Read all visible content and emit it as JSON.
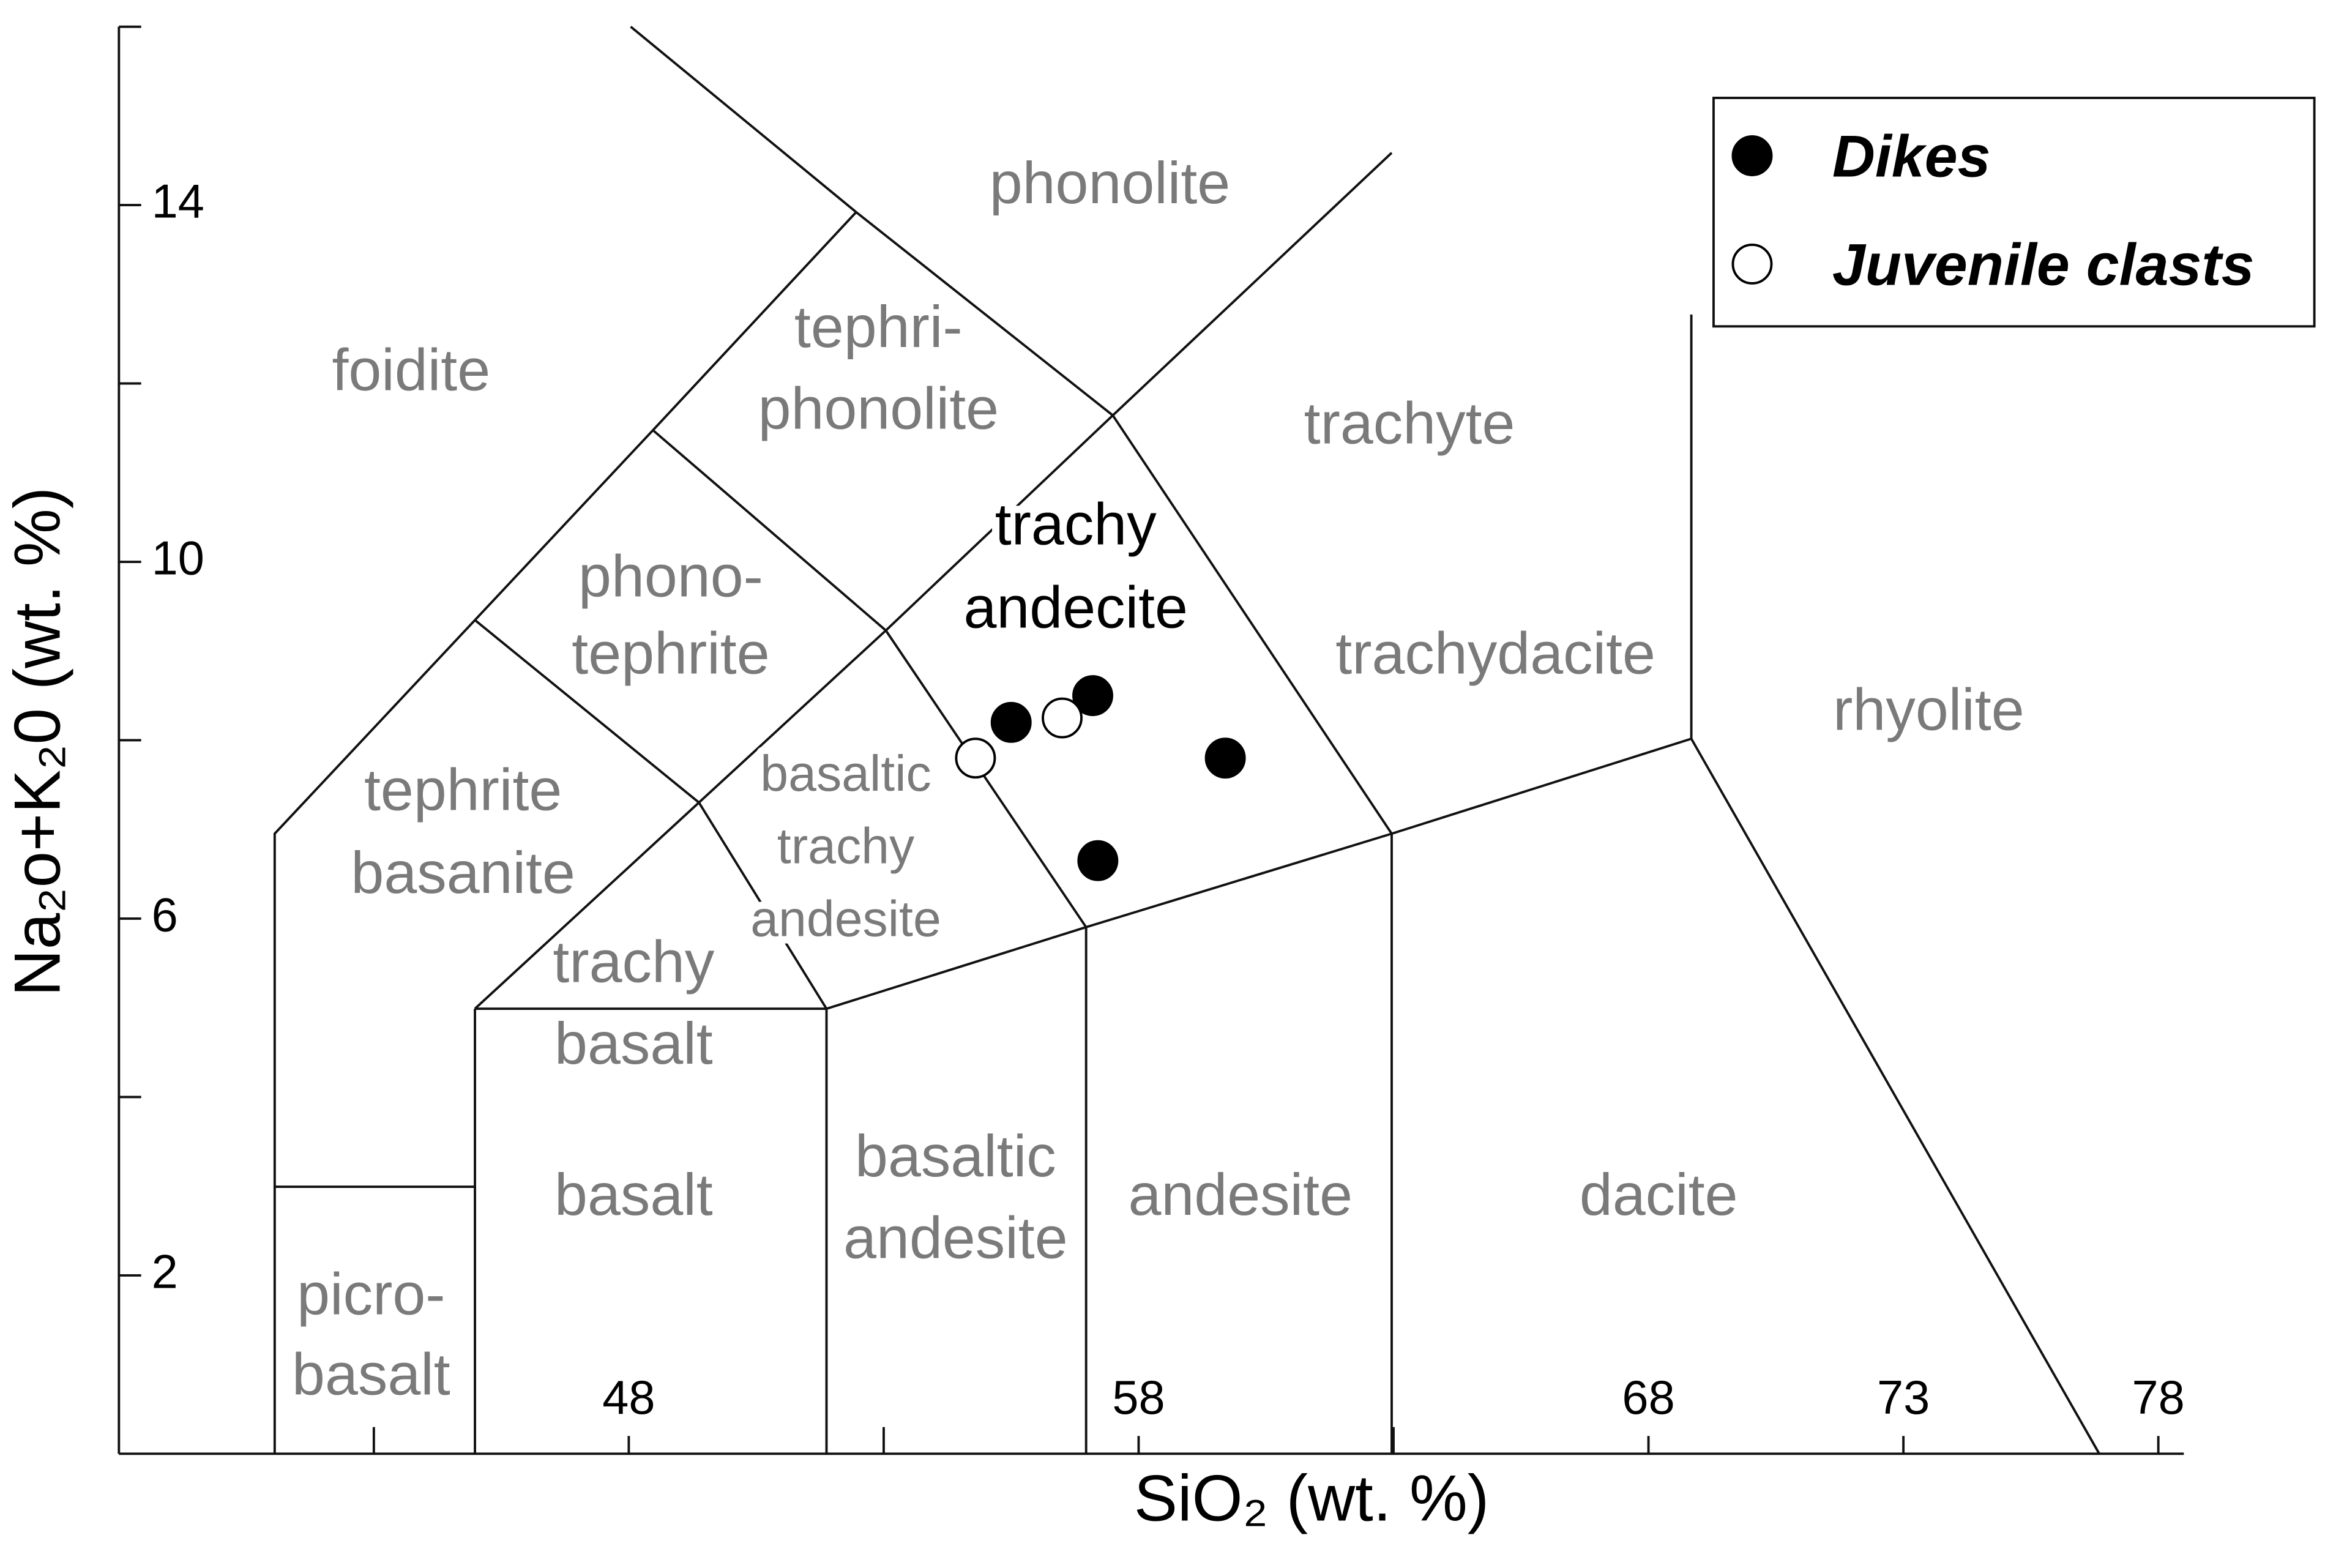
{
  "chart_data": {
    "type": "scatter",
    "x_label": "SiO₂ (wt. %)",
    "y_label": "Na₂o+K₂0 (wt. %)",
    "xlim": [
      38,
      78.5
    ],
    "xticks": [
      48,
      58,
      68,
      73,
      78
    ],
    "xminorticks": [
      43,
      53,
      63
    ],
    "ylim": [
      0,
      16
    ],
    "yticks": [
      2,
      6,
      10,
      14
    ],
    "yminorticks": [
      4,
      8,
      12,
      16
    ],
    "legend": "upper right",
    "series": [
      {
        "name": "Dikes",
        "fill": "#000000",
        "edge": "#000000",
        "x": [
          55.5,
          57.1,
          59.7,
          57.2
        ],
        "y": [
          8.2,
          8.5,
          7.8,
          6.65
        ]
      },
      {
        "name": "Juvenile clasts",
        "fill": "#ffffff",
        "edge": "#000000",
        "x": [
          54.8,
          56.5
        ],
        "y": [
          7.8,
          8.25
        ]
      }
    ],
    "fields": [
      {
        "lines": [
          "phonolite"
        ],
        "color": "#7a7a7a"
      },
      {
        "lines": [
          "foidite"
        ],
        "color": "#7a7a7a"
      },
      {
        "lines": [
          "tephri-",
          "phonolite"
        ],
        "color": "#7a7a7a"
      },
      {
        "lines": [
          "trachyte"
        ],
        "color": "#7a7a7a"
      },
      {
        "lines": [
          "trachy",
          "andecite"
        ],
        "color": "#000000"
      },
      {
        "lines": [
          "phono-",
          "tephrite"
        ],
        "color": "#7a7a7a"
      },
      {
        "lines": [
          "trachydacite"
        ],
        "color": "#7a7a7a"
      },
      {
        "lines": [
          "rhyolite"
        ],
        "color": "#7a7a7a"
      },
      {
        "lines": [
          "basaltic",
          "trachy",
          "andesite"
        ],
        "color": "#7a7a7a"
      },
      {
        "lines": [
          "tephrite",
          "basanite"
        ],
        "color": "#7a7a7a"
      },
      {
        "lines": [
          "trachy",
          "basalt"
        ],
        "color": "#7a7a7a"
      },
      {
        "lines": [
          "basalt"
        ],
        "color": "#7a7a7a"
      },
      {
        "lines": [
          "basaltic",
          "andesite"
        ],
        "color": "#7a7a7a"
      },
      {
        "lines": [
          "andesite"
        ],
        "color": "#7a7a7a"
      },
      {
        "lines": [
          "dacite"
        ],
        "color": "#7a7a7a"
      },
      {
        "lines": [
          "picro-",
          "basalt"
        ],
        "color": "#7a7a7a"
      }
    ]
  }
}
